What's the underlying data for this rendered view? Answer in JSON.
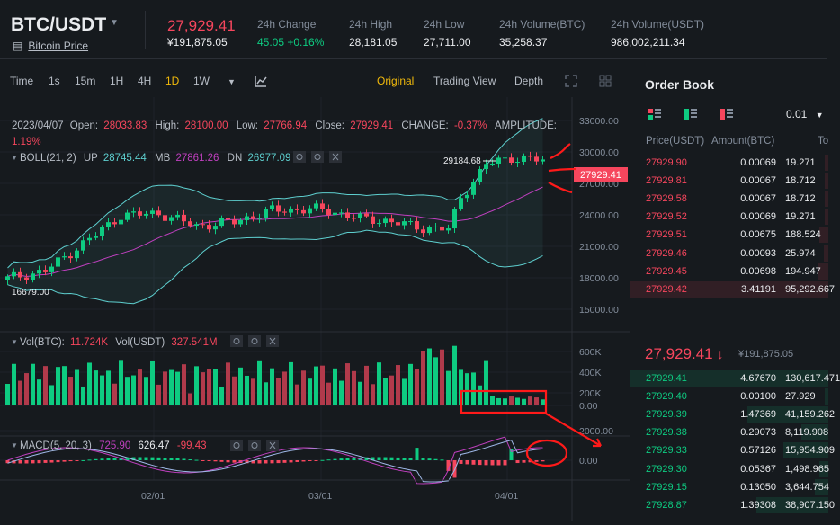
{
  "header": {
    "pair": "BTC/USDT",
    "coin_link": "Bitcoin Price",
    "last_price": "27,929.41",
    "last_price_cny": "¥191,875.05",
    "stats": [
      {
        "label": "24h Change",
        "value": "45.05 +0.16%",
        "color": "green"
      },
      {
        "label": "24h High",
        "value": "28,181.05",
        "color": "white"
      },
      {
        "label": "24h Low",
        "value": "27,711.00",
        "color": "white"
      },
      {
        "label": "24h Volume(BTC)",
        "value": "35,258.37",
        "color": "white"
      },
      {
        "label": "24h Volume(USDT)",
        "value": "986,002,211.34",
        "color": "white"
      }
    ]
  },
  "toolbar": {
    "intervals": [
      "Time",
      "1s",
      "15m",
      "1H",
      "4H",
      "1D",
      "1W"
    ],
    "active_interval": "1D",
    "views": [
      "Original",
      "Trading View",
      "Depth"
    ],
    "active_view": "Original"
  },
  "chart": {
    "ohlc_line1": {
      "date": "2023/04/07",
      "open_label": "Open:",
      "open": "28033.83",
      "high_label": "High:",
      "high": "28100.00",
      "low_label": "Low:",
      "low": "27766.94",
      "close_label": "Close:",
      "close": "27929.41",
      "change_label": "CHANGE:",
      "change": "-0.37%",
      "amp_label": "AMPLITUDE:",
      "amp": "1.19%"
    },
    "boll": {
      "label": "BOLL(21, 2)",
      "up_label": "UP",
      "up": "28745.44",
      "mb_label": "MB",
      "mb": "27861.26",
      "dn_label": "DN",
      "dn": "26977.09"
    },
    "price_ticks": [
      "33000.00",
      "30000.00",
      "27000.00",
      "24000.00",
      "21000.00",
      "18000.00",
      "15000.00"
    ],
    "price_tag": "27929.41",
    "high_marker": "29184.68",
    "low_marker": "16679.00",
    "vol": {
      "label_btc": "Vol(BTC):",
      "btc": "11.724K",
      "label_usdt": "Vol(USDT)",
      "usdt": "327.541M"
    },
    "vol_ticks": [
      "600K",
      "400K",
      "200K",
      "0.00"
    ],
    "macd": {
      "label": "MACD(5, 20, 3)",
      "v1": "725.90",
      "v2": "626.47",
      "v3": "-99.43"
    },
    "macd_ticks": [
      "2000.00",
      "0.00"
    ],
    "date_ticks": [
      "02/01",
      "03/01",
      "04/01"
    ],
    "colors": {
      "up": "#0ecb81",
      "down": "#f6465d",
      "ma": "#c040c0",
      "band": "#5ecfcf",
      "annotation": "#ff1a1a"
    }
  },
  "orderbook": {
    "title": "Order Book",
    "precision": "0.01",
    "col_price": "Price(USDT)",
    "col_amount": "Amount(BTC)",
    "col_total": "To",
    "asks": [
      {
        "price": "27929.90",
        "amount": "0.00069",
        "total": "19.271"
      },
      {
        "price": "27929.81",
        "amount": "0.00067",
        "total": "18.712"
      },
      {
        "price": "27929.58",
        "amount": "0.00067",
        "total": "18.712"
      },
      {
        "price": "27929.52",
        "amount": "0.00069",
        "total": "19.271"
      },
      {
        "price": "27929.51",
        "amount": "0.00675",
        "total": "188.524"
      },
      {
        "price": "27929.46",
        "amount": "0.00093",
        "total": "25.974"
      },
      {
        "price": "27929.45",
        "amount": "0.00698",
        "total": "194.947"
      },
      {
        "price": "27929.42",
        "amount": "3.41191",
        "total": "95,292.667"
      }
    ],
    "mid_price": "27,929.41",
    "mid_arrow": "↓",
    "mid_cny": "¥191,875.05",
    "bids": [
      {
        "price": "27929.41",
        "amount": "4.67670",
        "total": "130,617.471"
      },
      {
        "price": "27929.40",
        "amount": "0.00100",
        "total": "27.929"
      },
      {
        "price": "27929.39",
        "amount": "1.47369",
        "total": "41,159.262"
      },
      {
        "price": "27929.38",
        "amount": "0.29073",
        "total": "8,119.908"
      },
      {
        "price": "27929.33",
        "amount": "0.57126",
        "total": "15,954.909"
      },
      {
        "price": "27929.30",
        "amount": "0.05367",
        "total": "1,498.965"
      },
      {
        "price": "27929.15",
        "amount": "0.13050",
        "total": "3,644.754"
      },
      {
        "price": "27928.87",
        "amount": "1.39308",
        "total": "38,907.150"
      }
    ]
  }
}
